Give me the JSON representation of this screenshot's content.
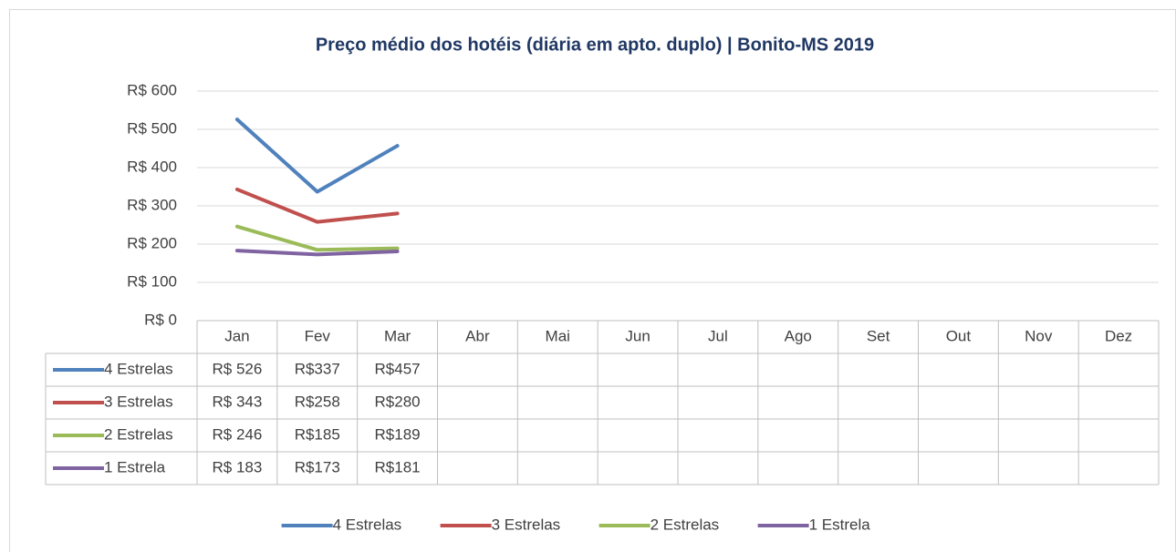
{
  "chart_data": {
    "type": "line",
    "title": "Preço médio dos hotéis (diária em apto. duplo) | Bonito-MS 2019",
    "categories": [
      "Jan",
      "Fev",
      "Mar",
      "Abr",
      "Mai",
      "Jun",
      "Jul",
      "Ago",
      "Set",
      "Out",
      "Nov",
      "Dez"
    ],
    "series": [
      {
        "name": "4 Estrelas",
        "color": "#4f81bd",
        "values": [
          526,
          337,
          457,
          null,
          null,
          null,
          null,
          null,
          null,
          null,
          null,
          null
        ],
        "value_labels": [
          "R$ 526",
          "R$337",
          "R$457",
          null,
          null,
          null,
          null,
          null,
          null,
          null,
          null,
          null
        ]
      },
      {
        "name": "3 Estrelas",
        "color": "#c0504d",
        "values": [
          343,
          258,
          280,
          null,
          null,
          null,
          null,
          null,
          null,
          null,
          null,
          null
        ],
        "value_labels": [
          "R$ 343",
          "R$258",
          "R$280",
          null,
          null,
          null,
          null,
          null,
          null,
          null,
          null,
          null
        ]
      },
      {
        "name": "2 Estrelas",
        "color": "#9bbb59",
        "values": [
          246,
          185,
          189,
          null,
          null,
          null,
          null,
          null,
          null,
          null,
          null,
          null
        ],
        "value_labels": [
          "R$ 246",
          "R$185",
          "R$189",
          null,
          null,
          null,
          null,
          null,
          null,
          null,
          null,
          null
        ]
      },
      {
        "name": "1 Estrela",
        "color": "#8064a2",
        "values": [
          183,
          173,
          181,
          null,
          null,
          null,
          null,
          null,
          null,
          null,
          null,
          null
        ],
        "value_labels": [
          "R$ 183",
          "R$173",
          "R$181",
          null,
          null,
          null,
          null,
          null,
          null,
          null,
          null,
          null
        ]
      }
    ],
    "ylim": [
      0,
      600
    ],
    "yticks": [
      {
        "value": 0,
        "label": "R$ 0"
      },
      {
        "value": 100,
        "label": "R$ 100"
      },
      {
        "value": 200,
        "label": "R$ 200"
      },
      {
        "value": 300,
        "label": "R$ 300"
      },
      {
        "value": 400,
        "label": "R$ 400"
      },
      {
        "value": 500,
        "label": "R$ 500"
      },
      {
        "value": 600,
        "label": "R$ 600"
      }
    ],
    "grid": true,
    "legend": "bottom"
  }
}
